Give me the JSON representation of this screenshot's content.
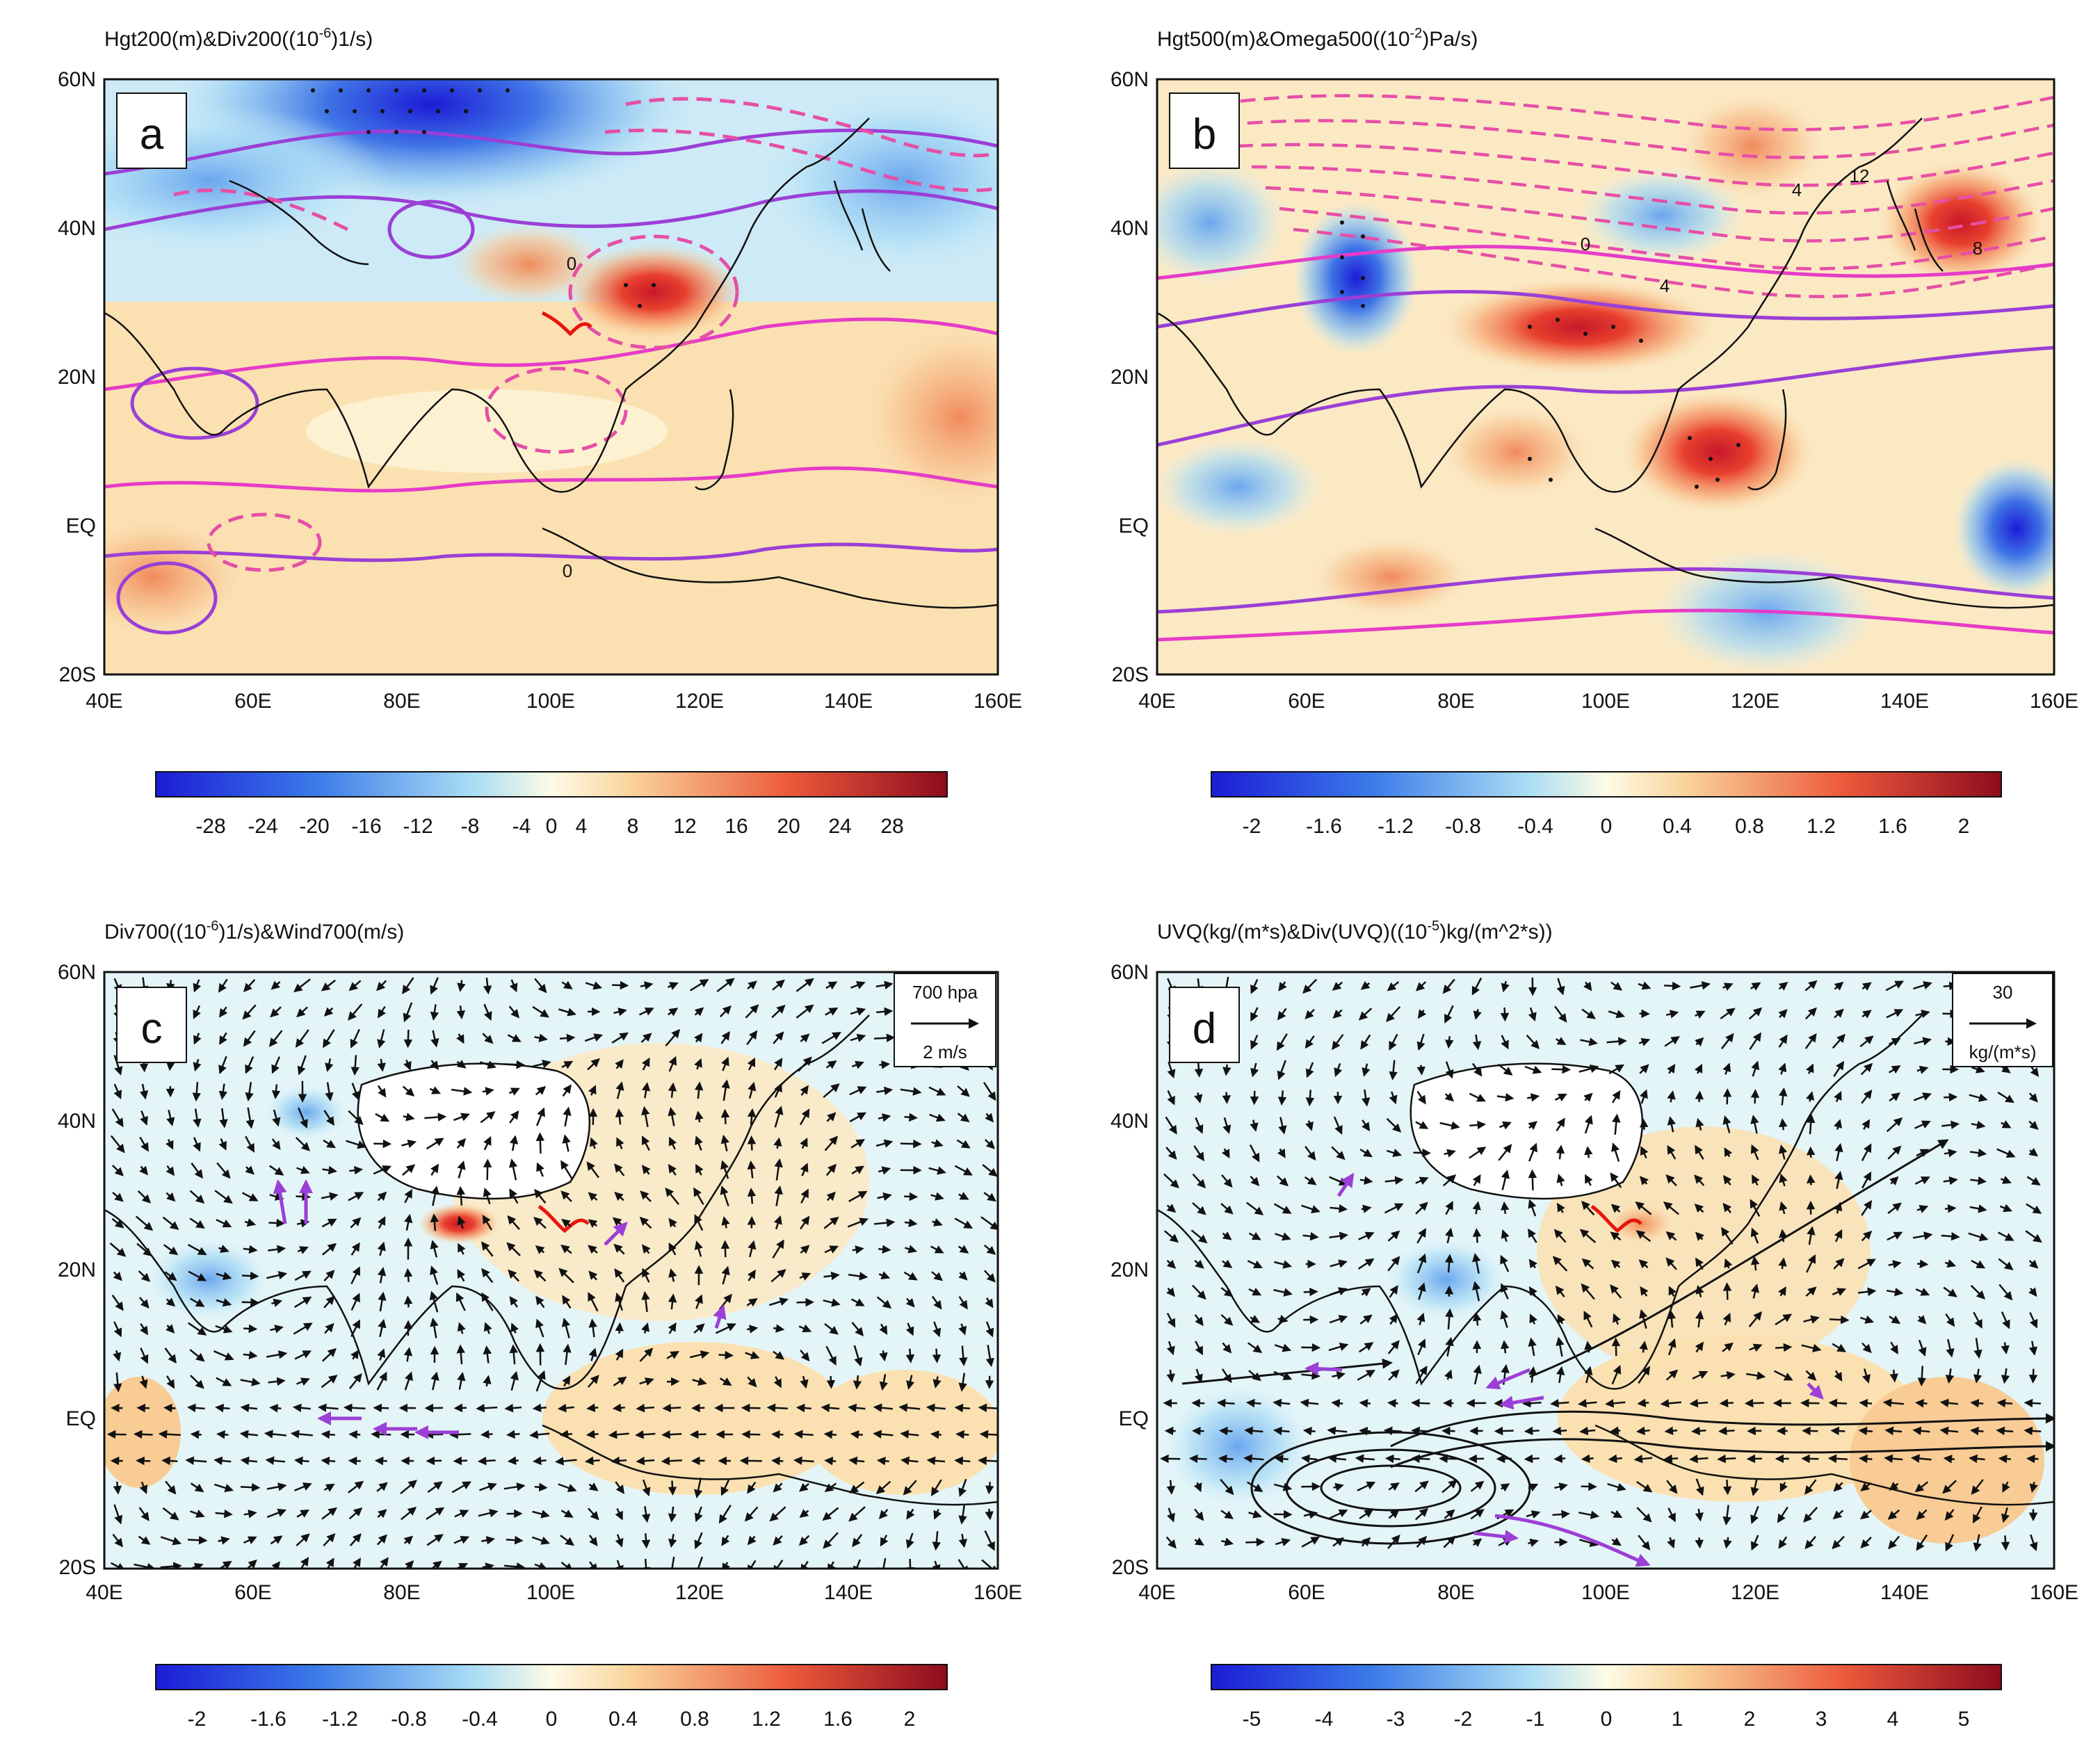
{
  "panels": [
    {
      "id": "a",
      "label": "a",
      "title": "Hgt200(m)&Div200((10^-6)1/s)",
      "title_base": "Hgt200(m)&Div200((10",
      "title_exp": "-6",
      "title_rest": ")1/s)",
      "colorbar_labels": [
        "-28",
        "-24",
        "-20",
        "-16",
        "-12",
        "-8",
        "-4",
        "0",
        "4",
        "8",
        "12",
        "16",
        "20",
        "24",
        "28"
      ],
      "contour_labels": [
        "0",
        "0"
      ]
    },
    {
      "id": "b",
      "label": "b",
      "title": "Hgt500(m)&Omega500((10^-2)Pa/s)",
      "title_base": "Hgt500(m)&Omega500((10",
      "title_exp": "-2",
      "title_rest": ")Pa/s)",
      "colorbar_labels": [
        "-2",
        "-1.6",
        "-1.2",
        "-0.8",
        "-0.4",
        "0",
        "0.4",
        "0.8",
        "1.2",
        "1.6",
        "2"
      ],
      "contour_labels": [
        "0",
        "4",
        "4",
        "12",
        "8"
      ]
    },
    {
      "id": "c",
      "label": "c",
      "title": "Div700((10^-6)1/s)&Wind700(m/s)",
      "title_base": "Div700((10",
      "title_exp": "-6",
      "title_rest": ")1/s)&Wind700(m/s)",
      "colorbar_labels": [
        "-2",
        "-1.6",
        "-1.2",
        "-0.8",
        "-0.4",
        "0",
        "0.4",
        "0.8",
        "1.2",
        "1.6",
        "2"
      ],
      "ref_vector": {
        "line1": "700 hpa",
        "line2": "2 m/s"
      }
    },
    {
      "id": "d",
      "label": "d",
      "title": "UVQ(kg/(m*s)&Div(UVQ)((10^-5)kg/(m^2*s))",
      "title_base": "UVQ(kg/(m*s)&Div(UVQ)((10",
      "title_exp": "-5",
      "title_rest": ")kg/(m^2*s))",
      "colorbar_labels": [
        "-5",
        "-4",
        "-3",
        "-2",
        "-1",
        "0",
        "1",
        "2",
        "3",
        "4",
        "5"
      ],
      "ref_vector": {
        "line1": "30",
        "line2": "kg/(m*s)"
      }
    }
  ],
  "axes": {
    "lat_labels": [
      "60N",
      "40N",
      "20N",
      "EQ",
      "20S"
    ],
    "lon_labels": [
      "40E",
      "60E",
      "80E",
      "100E",
      "120E",
      "140E",
      "160E"
    ]
  },
  "colors": {
    "cold_dark": "#1c1cd6",
    "cold_mid": "#4f8ff0",
    "cold_light": "#bfe6f6",
    "neutral": "#fdfbe6",
    "warm_light": "#f9dca6",
    "warm_mid": "#f3a06c",
    "warm_dark": "#e0302c",
    "warm_max": "#8e0c1c",
    "contour_pos": "#e63cc8",
    "contour_neg": "#e64fa6",
    "contour_violet": "#9b3fd6",
    "vector": "#111111",
    "vector_sig": "#9b3fd6",
    "region": "#e8150c"
  },
  "chart_data": [
    {
      "type": "map-contour",
      "panel": "a",
      "field_shaded": "Div200",
      "units": "10^-6 1/s",
      "levels_min": -30,
      "levels_max": 30,
      "contour_field": "Hgt200",
      "extent": {
        "lon": [
          40,
          160
        ],
        "lat": [
          -20,
          60
        ]
      }
    },
    {
      "type": "map-contour",
      "panel": "b",
      "field_shaded": "Omega500",
      "units": "10^-2 Pa/s",
      "levels_min": -2.2,
      "levels_max": 2.2,
      "contour_field": "Hgt500",
      "extent": {
        "lon": [
          40,
          160
        ],
        "lat": [
          -20,
          60
        ]
      }
    },
    {
      "type": "map-vector",
      "panel": "c",
      "field_shaded": "Div700",
      "units": "10^-6 1/s",
      "levels_min": -2.2,
      "levels_max": 2.2,
      "vector_field": "Wind700",
      "extent": {
        "lon": [
          40,
          160
        ],
        "lat": [
          -20,
          60
        ]
      }
    },
    {
      "type": "map-vector",
      "panel": "d",
      "field_shaded": "Div(UVQ)",
      "units": "10^-5 kg/(m^2*s)",
      "levels_min": -5.5,
      "levels_max": 5.5,
      "vector_field": "UVQ",
      "extent": {
        "lon": [
          40,
          160
        ],
        "lat": [
          -20,
          60
        ]
      }
    }
  ]
}
